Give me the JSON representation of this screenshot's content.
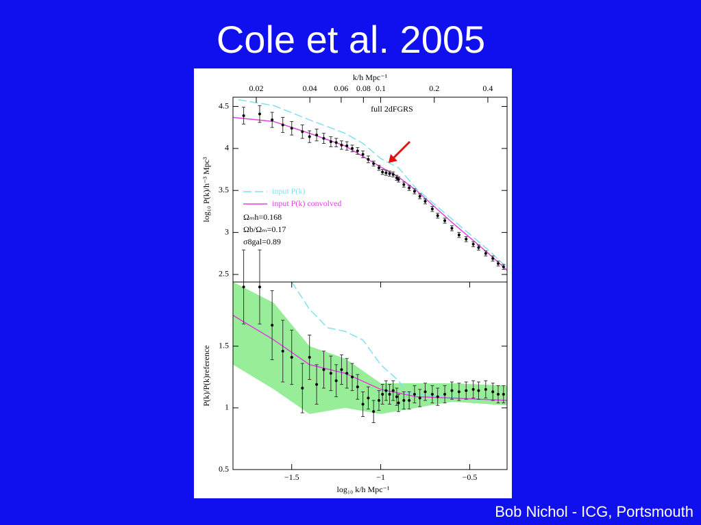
{
  "title": "Cole et al. 2005",
  "footer": "Bob Nichol - ICG, Portsmouth",
  "chart_data": [
    {
      "type": "errorbar",
      "x2label": "k/h Mpc⁻¹",
      "x2scale": "log",
      "x2lim": [
        0.0148,
        0.513
      ],
      "x2ticks": [
        0.02,
        0.04,
        0.06,
        0.08,
        0.1,
        0.2,
        0.4
      ],
      "ylabel": "log₁₀ P(k)/h⁻³ Mpc³",
      "annotation": "full 2dFGRS",
      "params": [
        "Ωₘh=0.168",
        "Ωb/Ωₘ=0.17",
        "σ8gal=0.89"
      ],
      "xlim": [
        -1.83,
        -0.29
      ],
      "ylim": [
        2.41,
        4.61
      ],
      "yticks": [
        2.5,
        3,
        3.5,
        4,
        4.5
      ],
      "color": "#000000",
      "x": [
        -1.77,
        -1.68,
        -1.61,
        -1.55,
        -1.5,
        -1.44,
        -1.4,
        -1.36,
        -1.32,
        -1.28,
        -1.25,
        -1.22,
        -1.19,
        -1.16,
        -1.13,
        -1.1,
        -1.07,
        -1.04,
        -1.01,
        -0.99,
        -0.97,
        -0.95,
        -0.93,
        -0.91,
        -0.9,
        -0.87,
        -0.84,
        -0.81,
        -0.78,
        -0.75,
        -0.71,
        -0.68,
        -0.64,
        -0.6,
        -0.56,
        -0.52,
        -0.48,
        -0.45,
        -0.41,
        -0.37,
        -0.34,
        -0.31
      ],
      "values": [
        4.39,
        4.41,
        4.34,
        4.28,
        4.24,
        4.2,
        4.14,
        4.16,
        4.12,
        4.08,
        4.07,
        4.04,
        4.03,
        4.0,
        3.97,
        3.93,
        3.87,
        3.82,
        3.77,
        3.72,
        3.71,
        3.7,
        3.69,
        3.65,
        3.63,
        3.57,
        3.53,
        3.49,
        3.43,
        3.37,
        3.28,
        3.2,
        3.14,
        3.05,
        2.97,
        2.92,
        2.86,
        2.82,
        2.75,
        2.69,
        2.63,
        2.59
      ],
      "errors": [
        0.1,
        0.1,
        0.09,
        0.09,
        0.08,
        0.08,
        0.07,
        0.07,
        0.06,
        0.06,
        0.05,
        0.05,
        0.05,
        0.04,
        0.04,
        0.04,
        0.04,
        0.03,
        0.03,
        0.03,
        0.03,
        0.03,
        0.03,
        0.03,
        0.03,
        0.03,
        0.03,
        0.03,
        0.03,
        0.03,
        0.03,
        0.03,
        0.03,
        0.03,
        0.03,
        0.03,
        0.03,
        0.03,
        0.03,
        0.03,
        0.03,
        0.03
      ],
      "series": [
        {
          "name": "input P(k)",
          "color": "#7fe0f0",
          "dash": true,
          "x": [
            -1.8,
            -1.6,
            -1.4,
            -1.2,
            -1.1,
            -1.0,
            -0.9,
            -0.8,
            -0.6,
            -0.4,
            -0.3
          ],
          "values": [
            4.58,
            4.51,
            4.34,
            4.18,
            4.06,
            3.88,
            3.77,
            3.52,
            3.16,
            2.8,
            2.6
          ]
        },
        {
          "name": "input P(k) convolved",
          "color": "#e040e0",
          "dash": false,
          "x": [
            -1.83,
            -1.6,
            -1.4,
            -1.2,
            -1.0,
            -0.9,
            -0.8,
            -0.6,
            -0.4,
            -0.29
          ],
          "values": [
            4.37,
            4.32,
            4.18,
            4.03,
            3.78,
            3.66,
            3.5,
            3.12,
            2.76,
            2.55
          ]
        }
      ]
    },
    {
      "type": "errorbar",
      "xlabel": "log₁₀ k/h Mpc⁻¹",
      "ylabel": "P(k)/P(k)reference",
      "xlim": [
        -1.83,
        -0.29
      ],
      "ylim": [
        0.5,
        2.02
      ],
      "xticks": [
        {
          "value": -1.5,
          "label": "−1.5"
        },
        {
          "value": -1,
          "label": "−1"
        },
        {
          "value": -0.5,
          "label": "−0.5"
        }
      ],
      "yticks": [
        0.5,
        1,
        1.5
      ],
      "color": "#000000",
      "band": {
        "color": "#7ee87e",
        "x": [
          -1.83,
          -1.6,
          -1.4,
          -1.2,
          -1.0,
          -0.8,
          -0.6,
          -0.29
        ],
        "high": [
          2.02,
          1.85,
          1.5,
          1.4,
          1.2,
          1.2,
          1.2,
          1.18
        ],
        "low": [
          1.35,
          1.15,
          0.95,
          1.0,
          0.95,
          1.0,
          1.05,
          1.02
        ]
      },
      "x": [
        -1.77,
        -1.68,
        -1.61,
        -1.55,
        -1.5,
        -1.44,
        -1.4,
        -1.36,
        -1.32,
        -1.28,
        -1.25,
        -1.22,
        -1.19,
        -1.16,
        -1.13,
        -1.1,
        -1.07,
        -1.04,
        -1.01,
        -0.99,
        -0.97,
        -0.95,
        -0.93,
        -0.91,
        -0.9,
        -0.87,
        -0.84,
        -0.81,
        -0.78,
        -0.75,
        -0.71,
        -0.68,
        -0.64,
        -0.6,
        -0.56,
        -0.52,
        -0.48,
        -0.45,
        -0.41,
        -0.37,
        -0.34,
        -0.31
      ],
      "values": [
        1.98,
        1.98,
        1.67,
        1.46,
        1.41,
        1.16,
        1.41,
        1.19,
        1.31,
        1.28,
        1.22,
        1.31,
        1.28,
        1.25,
        1.17,
        1.03,
        1.08,
        0.97,
        1.06,
        1.11,
        1.14,
        1.11,
        1.14,
        1.09,
        1.04,
        1.06,
        1.06,
        1.11,
        1.08,
        1.13,
        1.11,
        1.09,
        1.11,
        1.14,
        1.13,
        1.14,
        1.15,
        1.14,
        1.15,
        1.13,
        1.11,
        1.11
      ],
      "errors": [
        0.3,
        0.3,
        0.28,
        0.25,
        0.22,
        0.2,
        0.18,
        0.16,
        0.15,
        0.14,
        0.13,
        0.12,
        0.12,
        0.11,
        0.1,
        0.1,
        0.09,
        0.09,
        0.08,
        0.08,
        0.08,
        0.08,
        0.08,
        0.07,
        0.07,
        0.07,
        0.07,
        0.07,
        0.07,
        0.07,
        0.07,
        0.07,
        0.07,
        0.07,
        0.07,
        0.07,
        0.07,
        0.07,
        0.07,
        0.07,
        0.07,
        0.07
      ],
      "series": [
        {
          "color": "#7fe0f0",
          "dash": true,
          "x": [
            -1.5,
            -1.4,
            -1.3,
            -1.2,
            -1.1,
            -1.0,
            -0.9,
            -0.85,
            -0.7,
            -0.5,
            -0.29
          ],
          "values": [
            2.02,
            1.8,
            1.65,
            1.62,
            1.55,
            1.35,
            1.22,
            1.12,
            1.1,
            1.07,
            1.06
          ]
        },
        {
          "color": "#e040e0",
          "dash": false,
          "x": [
            -1.83,
            -1.6,
            -1.4,
            -1.2,
            -1.0,
            -0.8,
            -0.6,
            -0.29
          ],
          "values": [
            1.75,
            1.55,
            1.35,
            1.28,
            1.15,
            1.09,
            1.08,
            1.06
          ]
        }
      ]
    }
  ]
}
